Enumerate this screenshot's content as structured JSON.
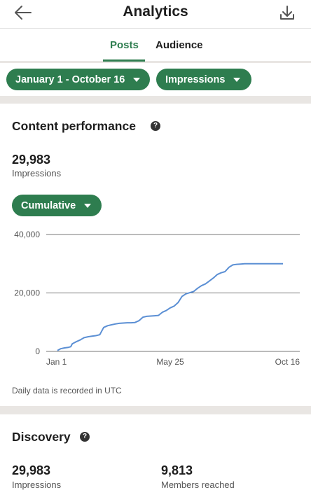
{
  "header": {
    "title": "Analytics",
    "back_icon": "arrow-left-icon",
    "download_icon": "download-icon"
  },
  "tabs": [
    {
      "label": "Posts",
      "active": true
    },
    {
      "label": "Audience",
      "active": false
    }
  ],
  "filters": {
    "date_range": "January 1 - October 16",
    "metric": "Impressions"
  },
  "content_performance": {
    "heading": "Content performance",
    "total_value": "29,983",
    "total_label": "Impressions",
    "mode": "Cumulative",
    "footnote": "Daily data is recorded in UTC"
  },
  "chart_data": {
    "type": "line",
    "x_tick_labels": [
      "Jan 1",
      "May 25",
      "Oct 16"
    ],
    "y_tick_labels": [
      "0",
      "20,000",
      "40,000"
    ],
    "ylim": [
      0,
      40000
    ],
    "grid": true,
    "x": [
      1,
      5,
      10,
      15,
      18,
      20,
      25,
      30,
      35,
      40,
      45,
      50,
      55,
      60,
      65,
      70,
      75,
      80,
      85,
      90,
      95,
      100,
      105,
      110,
      115,
      120,
      125,
      130,
      135,
      140,
      145,
      150,
      155,
      160,
      165,
      170,
      175,
      180,
      185,
      190,
      195,
      200,
      205,
      210,
      215,
      220,
      225,
      230,
      235,
      240,
      245,
      250,
      255,
      260,
      265,
      270,
      275,
      280,
      285,
      289
    ],
    "y": [
      300,
      900,
      1200,
      1400,
      1600,
      2600,
      3300,
      3900,
      4700,
      5000,
      5200,
      5400,
      5700,
      8200,
      8800,
      9100,
      9400,
      9600,
      9700,
      9800,
      9800,
      9900,
      10500,
      11700,
      12000,
      12100,
      12200,
      12300,
      13400,
      14000,
      14900,
      15500,
      16700,
      18800,
      19700,
      20100,
      20500,
      21600,
      22500,
      23100,
      24100,
      25100,
      26300,
      26900,
      27300,
      28800,
      29600,
      29800,
      29900,
      29983,
      29983,
      29983,
      29983,
      29983,
      29983,
      29983,
      29983,
      29983,
      29983,
      29983
    ],
    "color": "#5b8fd4"
  },
  "discovery": {
    "heading": "Discovery",
    "stats": [
      {
        "value": "29,983",
        "label": "Impressions"
      },
      {
        "value": "9,813",
        "label": "Members reached"
      }
    ]
  }
}
